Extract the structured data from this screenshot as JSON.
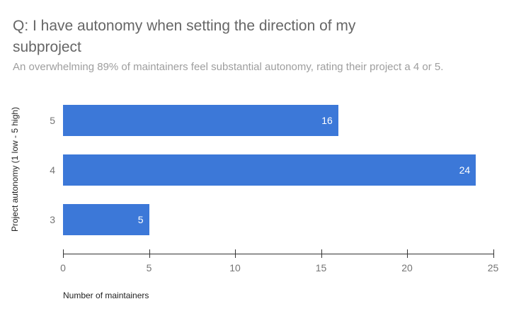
{
  "chart_data": {
    "type": "bar",
    "orientation": "horizontal",
    "title": "Q: I have autonomy when setting the direction of my subproject",
    "title_lines": [
      "Q: I have autonomy when setting the direction of my",
      "subproject"
    ],
    "subtitle": "An overwhelming 89% of maintainers feel substantial autonomy, rating their project a 4 or 5.",
    "categories": [
      "5",
      "4",
      "3"
    ],
    "values": [
      16,
      24,
      5
    ],
    "xlabel": "Number of maintainers",
    "ylabel": "Project autonomy (1 low - 5 high)",
    "xlim": [
      0,
      25
    ],
    "xticks": [
      0,
      5,
      10,
      15,
      20,
      25
    ],
    "grid": false,
    "legend": "none",
    "bar_color": "#3c78d8",
    "value_label_color": "#ffffff"
  },
  "colors": {
    "background": "#ffffff",
    "title": "#666666",
    "subtitle": "#9e9e9e",
    "axis_text": "#757575",
    "axis_line": "#333333",
    "axis_title": "#222222"
  }
}
